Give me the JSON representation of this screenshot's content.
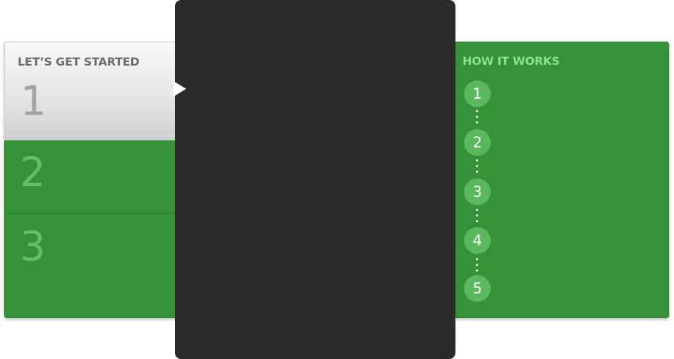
{
  "steps": {
    "items": [
      {
        "title": "LET’S GET STARTED",
        "number": "1",
        "active": true
      },
      {
        "title": "",
        "number": "2",
        "active": false
      },
      {
        "title": "",
        "number": "3",
        "active": false
      }
    ]
  },
  "how_it_works": {
    "title": "HOW IT WORKS",
    "steps": [
      "1",
      "2",
      "3",
      "4",
      "5"
    ]
  },
  "colors": {
    "green": "#359237",
    "dark_panel": "#2b2b2b",
    "circle": "#5cb85c",
    "title_green": "#8fe08a"
  },
  "icons": {
    "pointer": "triangle-pointer-icon"
  }
}
